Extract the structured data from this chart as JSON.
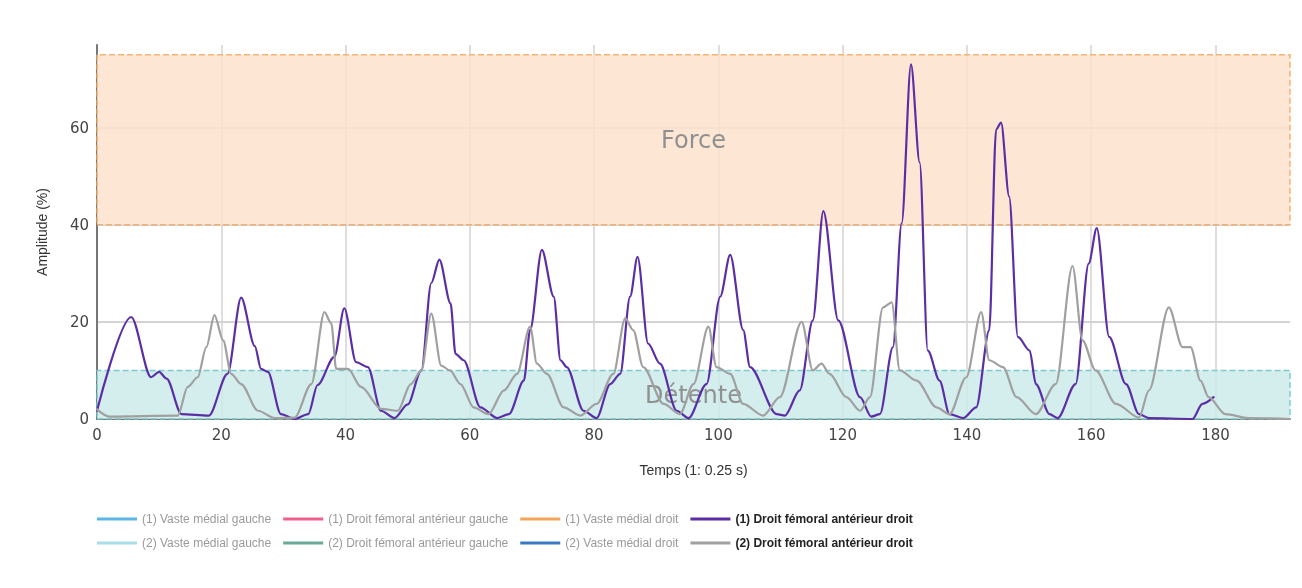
{
  "chart_data": {
    "type": "line",
    "xlabel": "Temps (1: 0.25 s)",
    "ylabel": "Amplitude (%)",
    "xlim": [
      0,
      192
    ],
    "xticks": [
      0,
      20,
      40,
      60,
      80,
      100,
      120,
      140,
      160,
      180
    ],
    "ylim": [
      0,
      77
    ],
    "yticks": [
      0,
      20,
      40,
      60
    ],
    "grid": true,
    "legend": "bottom left",
    "marker": "none",
    "line_style": "solid",
    "bands": [
      {
        "axis": "y",
        "from": 40,
        "to": 75,
        "label": "Force",
        "color": "#fde3cc"
      },
      {
        "axis": "y",
        "from": 0,
        "to": 10,
        "label": "Détente",
        "color": "#cdebeb"
      }
    ],
    "series": [
      {
        "name": "(1) Vaste médial gauche",
        "color": "#5bb5e8"
      },
      {
        "name": "(1) Droit fémoral antérieur gauche",
        "color": "#f0608a"
      },
      {
        "name": "(1) Vaste médial droit",
        "color": "#f5a55a"
      },
      {
        "name": "(1) Droit fémoral antérieur droit",
        "color": "#5b2ea6",
        "x": [
          0,
          5.5,
          8.7,
          10,
          11.2,
          13.6,
          18,
          21,
          23.2,
          25.4,
          26.4,
          27.5,
          29.6,
          31.8,
          34,
          35.5,
          38.2,
          39.8,
          41.7,
          43.6,
          45.7,
          47.9,
          50,
          52.2,
          53.8,
          55.1,
          56.9,
          57.7,
          59,
          61.7,
          64.4,
          66.3,
          68.7,
          69.7,
          71.6,
          73.5,
          74.6,
          75.6,
          78.3,
          80.4,
          82.6,
          84.2,
          85.8,
          87,
          88.7,
          90.6,
          93.3,
          95.2,
          98.1,
          100.3,
          101.9,
          104,
          105.1,
          109.4,
          110.7,
          113.1,
          115.2,
          116.9,
          119.3,
          122.8,
          124.6,
          126,
          128.1,
          129.5,
          131,
          132.4,
          133.7,
          135.6,
          137.2,
          139.4,
          141.5,
          143.6,
          144.7,
          145.5,
          146.8,
          148.2,
          150.1,
          151.1,
          153.3,
          154.6,
          157.5,
          159.6,
          160.9,
          162.9,
          165.6,
          167.7,
          169.3,
          176.3,
          177.9,
          179.7
        ],
        "values": [
          1.7,
          21,
          8.6,
          9.7,
          8.3,
          1,
          0.7,
          9.3,
          25,
          15,
          10.3,
          9.7,
          1,
          0,
          1,
          7,
          12.8,
          22.8,
          11.7,
          10.7,
          1.7,
          0.2,
          3,
          10,
          28,
          32.8,
          23.8,
          13.4,
          12.1,
          2.4,
          0.2,
          1,
          7.9,
          18.3,
          34.8,
          25.2,
          12.1,
          10.7,
          1.7,
          0.2,
          7.2,
          9.3,
          25.2,
          33.4,
          15.5,
          11.4,
          1.7,
          0.2,
          7.2,
          25.2,
          33.8,
          18.3,
          10.7,
          1,
          0.7,
          5.9,
          20.3,
          42.8,
          20.3,
          4.5,
          0.5,
          1,
          14.8,
          40.3,
          73,
          52.8,
          14.1,
          7.9,
          1,
          0.2,
          2.4,
          18.3,
          59.6,
          61,
          45.8,
          16.9,
          14.1,
          7.2,
          1,
          0.2,
          7.2,
          32,
          39.3,
          16.9,
          7.2,
          1,
          0.2,
          0,
          3.1,
          4.5
        ]
      },
      {
        "name": "(2) Vaste médial gauche",
        "color": "#a8dde8"
      },
      {
        "name": "(2) Droit fémoral antérieur gauche",
        "color": "#6aa89a"
      },
      {
        "name": "(2) Vaste médial droit",
        "color": "#3a78c8"
      },
      {
        "name": "(2) Droit fémoral antérieur droit",
        "color": "#a0a0a0",
        "x": [
          0,
          2,
          13,
          14.6,
          16.2,
          17.6,
          18.9,
          20.3,
          21.6,
          23.2,
          25.9,
          28.6,
          31.8,
          34.5,
          36.6,
          37.7,
          38.5,
          40.4,
          42.5,
          45.7,
          48.4,
          50.5,
          52.2,
          53.8,
          55.4,
          56.8,
          58.5,
          60.6,
          63,
          65.5,
          67.6,
          69.7,
          70.8,
          72.4,
          75.1,
          77.8,
          80.4,
          83.1,
          85,
          86.3,
          87.9,
          91.2,
          93.8,
          96,
          98.4,
          99.7,
          101.9,
          104,
          107.2,
          109.9,
          113.4,
          115.2,
          116.6,
          117.9,
          120.6,
          122.8,
          124.4,
          126.5,
          127.9,
          129.2,
          131.9,
          135.1,
          137.2,
          139.9,
          142.3,
          143.6,
          145.8,
          148,
          151.1,
          154.3,
          157,
          158.6,
          160.7,
          164,
          167.7,
          169.3,
          172.5,
          174.7,
          176,
          177.6,
          178.9,
          181.6,
          185.3,
          192
        ],
        "values": [
          2,
          0.5,
          0.7,
          6.6,
          8.6,
          14.8,
          21.4,
          16.2,
          9.3,
          7.2,
          1.7,
          0.2,
          0.3,
          7.2,
          22,
          19.7,
          10.3,
          10.3,
          6.6,
          2.1,
          1.7,
          7.2,
          10,
          21.7,
          11,
          10,
          7.2,
          2.4,
          1,
          5.9,
          9.3,
          19,
          11.4,
          9.3,
          2.4,
          0.7,
          3.1,
          9.3,
          20.7,
          18.3,
          10.7,
          3.1,
          1,
          7.2,
          19,
          10.7,
          9.3,
          3.1,
          0.7,
          4.5,
          20,
          10,
          11.4,
          9.3,
          4.5,
          1.7,
          4.5,
          23,
          24,
          10,
          7.9,
          2.4,
          1,
          8.6,
          22,
          12.1,
          10.7,
          4.5,
          1,
          7.2,
          31.5,
          16.2,
          10,
          3.1,
          0.3,
          5.9,
          23,
          14.8,
          14.8,
          7.9,
          4.5,
          1,
          0.2,
          0
        ]
      }
    ]
  }
}
